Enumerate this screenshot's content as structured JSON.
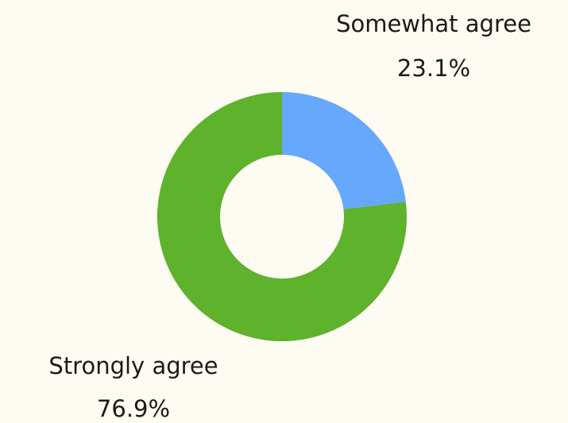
{
  "chart_data": {
    "type": "donut",
    "categories": [
      "Somewhat agree",
      "Strongly agree"
    ],
    "values": [
      23.1,
      76.9
    ],
    "value_labels": [
      "23.1%",
      "76.9%"
    ],
    "colors": [
      "#66a8fb",
      "#5fb22c"
    ]
  }
}
